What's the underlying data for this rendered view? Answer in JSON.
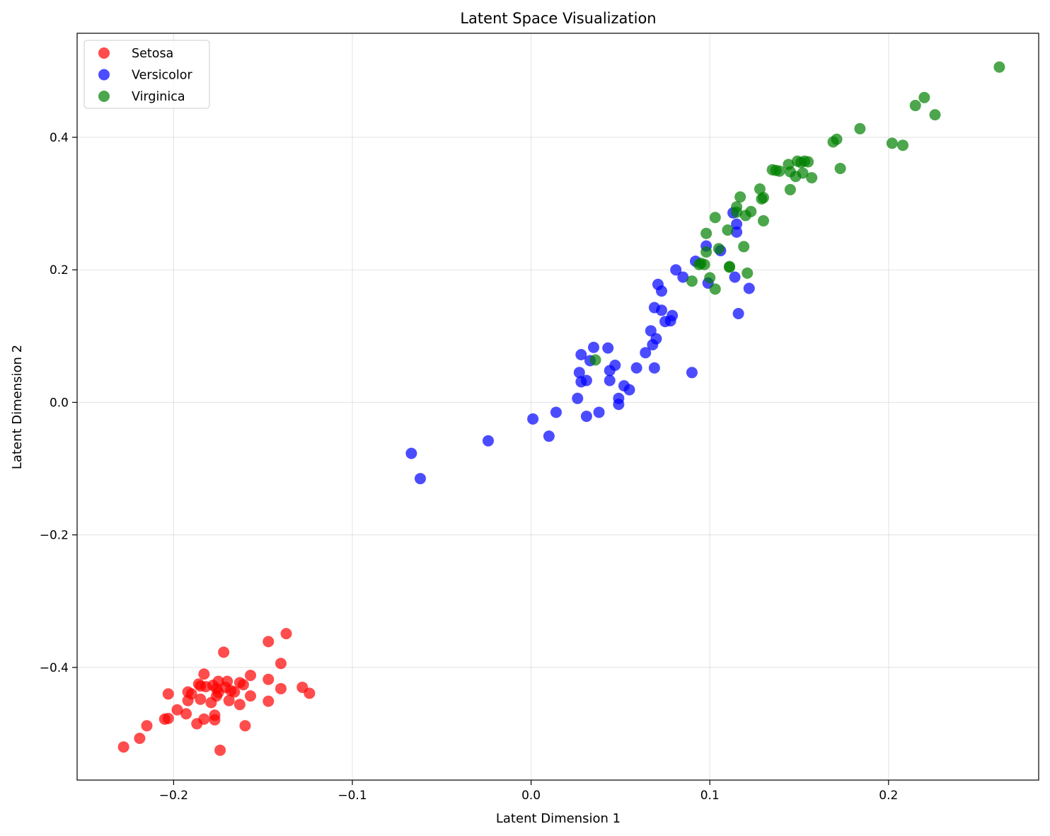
{
  "chart_data": {
    "type": "scatter",
    "title": "Latent Space Visualization",
    "xlabel": "Latent Dimension 1",
    "ylabel": "Latent Dimension 2",
    "xlim": [
      -0.254,
      0.284
    ],
    "ylim": [
      -0.57,
      0.557
    ],
    "xticks": [
      -0.2,
      -0.1,
      0.0,
      0.1,
      0.2
    ],
    "xtick_labels": [
      "−0.2",
      "−0.1",
      "0.0",
      "0.1",
      "0.2"
    ],
    "yticks": [
      -0.4,
      -0.2,
      0.0,
      0.2,
      0.4
    ],
    "ytick_labels": [
      "−0.4",
      "−0.2",
      "0.0",
      "0.2",
      "0.4"
    ],
    "grid": true,
    "legend_position": "top-left",
    "series": [
      {
        "name": "Setosa",
        "color": "#ff0000",
        "points": [
          [
            -0.137,
            -0.349
          ],
          [
            -0.147,
            -0.361
          ],
          [
            -0.172,
            -0.377
          ],
          [
            -0.14,
            -0.394
          ],
          [
            -0.157,
            -0.412
          ],
          [
            -0.183,
            -0.41
          ],
          [
            -0.147,
            -0.418
          ],
          [
            -0.17,
            -0.421
          ],
          [
            -0.163,
            -0.423
          ],
          [
            -0.175,
            -0.421
          ],
          [
            -0.186,
            -0.425
          ],
          [
            -0.178,
            -0.427
          ],
          [
            -0.161,
            -0.426
          ],
          [
            -0.14,
            -0.432
          ],
          [
            -0.182,
            -0.429
          ],
          [
            -0.128,
            -0.43
          ],
          [
            -0.176,
            -0.432
          ],
          [
            -0.168,
            -0.435
          ],
          [
            -0.192,
            -0.437
          ],
          [
            -0.175,
            -0.438
          ],
          [
            -0.166,
            -0.437
          ],
          [
            -0.124,
            -0.439
          ],
          [
            -0.203,
            -0.44
          ],
          [
            -0.157,
            -0.443
          ],
          [
            -0.176,
            -0.443
          ],
          [
            -0.19,
            -0.44
          ],
          [
            -0.185,
            -0.448
          ],
          [
            -0.169,
            -0.45
          ],
          [
            -0.147,
            -0.451
          ],
          [
            -0.192,
            -0.45
          ],
          [
            -0.179,
            -0.453
          ],
          [
            -0.163,
            -0.456
          ],
          [
            -0.198,
            -0.464
          ],
          [
            -0.193,
            -0.47
          ],
          [
            -0.177,
            -0.472
          ],
          [
            -0.205,
            -0.478
          ],
          [
            -0.203,
            -0.477
          ],
          [
            -0.183,
            -0.478
          ],
          [
            -0.177,
            -0.479
          ],
          [
            -0.187,
            -0.485
          ],
          [
            -0.215,
            -0.488
          ],
          [
            -0.16,
            -0.488
          ],
          [
            -0.219,
            -0.507
          ],
          [
            -0.228,
            -0.52
          ],
          [
            -0.174,
            -0.525
          ],
          [
            -0.185,
            -0.428
          ],
          [
            -0.171,
            -0.43
          ]
        ]
      },
      {
        "name": "Versicolor",
        "color": "#0000ff",
        "points": [
          [
            -0.067,
            -0.077
          ],
          [
            -0.062,
            -0.115
          ],
          [
            -0.024,
            -0.058
          ],
          [
            0.001,
            -0.025
          ],
          [
            0.01,
            -0.051
          ],
          [
            0.014,
            -0.015
          ],
          [
            0.026,
            0.006
          ],
          [
            0.031,
            -0.021
          ],
          [
            0.038,
            -0.015
          ],
          [
            0.049,
            -0.003
          ],
          [
            0.049,
            0.006
          ],
          [
            0.052,
            0.025
          ],
          [
            0.055,
            0.019
          ],
          [
            0.027,
            0.045
          ],
          [
            0.028,
            0.031
          ],
          [
            0.031,
            0.033
          ],
          [
            0.028,
            0.072
          ],
          [
            0.033,
            0.063
          ],
          [
            0.035,
            0.083
          ],
          [
            0.043,
            0.082
          ],
          [
            0.044,
            0.048
          ],
          [
            0.044,
            0.033
          ],
          [
            0.047,
            0.056
          ],
          [
            0.059,
            0.052
          ],
          [
            0.064,
            0.075
          ],
          [
            0.067,
            0.108
          ],
          [
            0.068,
            0.087
          ],
          [
            0.07,
            0.096
          ],
          [
            0.069,
            0.052
          ],
          [
            0.069,
            0.143
          ],
          [
            0.073,
            0.139
          ],
          [
            0.075,
            0.122
          ],
          [
            0.078,
            0.123
          ],
          [
            0.079,
            0.131
          ],
          [
            0.071,
            0.178
          ],
          [
            0.073,
            0.168
          ],
          [
            0.081,
            0.2
          ],
          [
            0.085,
            0.189
          ],
          [
            0.092,
            0.213
          ],
          [
            0.098,
            0.236
          ],
          [
            0.106,
            0.229
          ],
          [
            0.099,
            0.18
          ],
          [
            0.09,
            0.045
          ],
          [
            0.114,
            0.189
          ],
          [
            0.116,
            0.134
          ],
          [
            0.122,
            0.172
          ],
          [
            0.115,
            0.257
          ],
          [
            0.115,
            0.269
          ],
          [
            0.113,
            0.286
          ]
        ]
      },
      {
        "name": "Virginica",
        "color": "#008000",
        "points": [
          [
            0.036,
            0.064
          ],
          [
            0.09,
            0.183
          ],
          [
            0.095,
            0.21
          ],
          [
            0.097,
            0.208
          ],
          [
            0.098,
            0.227
          ],
          [
            0.1,
            0.188
          ],
          [
            0.103,
            0.171
          ],
          [
            0.098,
            0.255
          ],
          [
            0.103,
            0.279
          ],
          [
            0.105,
            0.232
          ],
          [
            0.11,
            0.26
          ],
          [
            0.111,
            0.204
          ],
          [
            0.115,
            0.295
          ],
          [
            0.115,
            0.287
          ],
          [
            0.117,
            0.31
          ],
          [
            0.119,
            0.235
          ],
          [
            0.12,
            0.282
          ],
          [
            0.121,
            0.195
          ],
          [
            0.123,
            0.288
          ],
          [
            0.128,
            0.322
          ],
          [
            0.129,
            0.307
          ],
          [
            0.13,
            0.309
          ],
          [
            0.13,
            0.274
          ],
          [
            0.135,
            0.351
          ],
          [
            0.137,
            0.35
          ],
          [
            0.139,
            0.349
          ],
          [
            0.144,
            0.359
          ],
          [
            0.145,
            0.348
          ],
          [
            0.145,
            0.321
          ],
          [
            0.148,
            0.341
          ],
          [
            0.149,
            0.364
          ],
          [
            0.152,
            0.346
          ],
          [
            0.153,
            0.364
          ],
          [
            0.155,
            0.363
          ],
          [
            0.157,
            0.339
          ],
          [
            0.169,
            0.393
          ],
          [
            0.171,
            0.397
          ],
          [
            0.173,
            0.353
          ],
          [
            0.184,
            0.413
          ],
          [
            0.202,
            0.391
          ],
          [
            0.208,
            0.388
          ],
          [
            0.215,
            0.448
          ],
          [
            0.22,
            0.46
          ],
          [
            0.226,
            0.434
          ],
          [
            0.262,
            0.506
          ],
          [
            0.111,
            0.205
          ],
          [
            0.094,
            0.208
          ],
          [
            0.151,
            0.362
          ]
        ]
      }
    ]
  }
}
